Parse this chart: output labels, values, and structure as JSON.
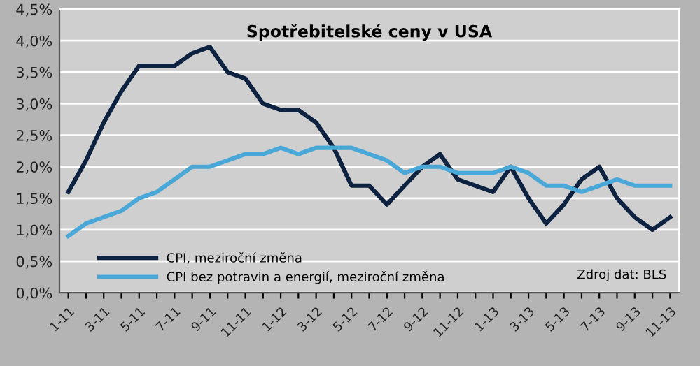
{
  "chart_data": {
    "type": "line",
    "title": "Spotřebitelské ceny v USA",
    "categories": [
      "1-11",
      null,
      "3-11",
      null,
      "5-11",
      null,
      "7-11",
      null,
      "9-11",
      null,
      "11-11",
      null,
      "1-12",
      null,
      "3-12",
      null,
      "5-12",
      null,
      "7-12",
      null,
      "9-12",
      null,
      "11-12",
      null,
      "1-13",
      null,
      "3-13",
      null,
      "5-13",
      null,
      "7-13",
      null,
      "9-13",
      null,
      "11-13"
    ],
    "series": [
      {
        "name": "CPI, meziroční změna",
        "color": "#0d2240",
        "values": [
          1.6,
          2.1,
          2.7,
          3.2,
          3.6,
          3.6,
          3.6,
          3.8,
          3.9,
          3.5,
          3.4,
          3.0,
          2.9,
          2.9,
          2.7,
          2.3,
          1.7,
          1.7,
          1.4,
          1.7,
          2.0,
          2.2,
          1.8,
          1.7,
          1.6,
          2.0,
          1.5,
          1.1,
          1.4,
          1.8,
          2.0,
          1.5,
          1.2,
          1.0,
          1.2
        ]
      },
      {
        "name": "CPI bez potravin a energií, meziroční změna",
        "color": "#4aa8d8",
        "values": [
          0.9,
          1.1,
          1.2,
          1.3,
          1.5,
          1.6,
          1.8,
          2.0,
          2.0,
          2.1,
          2.2,
          2.2,
          2.3,
          2.2,
          2.3,
          2.3,
          2.3,
          2.2,
          2.1,
          1.9,
          2.0,
          2.0,
          1.9,
          1.9,
          1.9,
          2.0,
          1.9,
          1.7,
          1.7,
          1.6,
          1.7,
          1.8,
          1.7,
          1.7,
          1.7
        ]
      }
    ],
    "ylim": [
      0,
      4.5
    ],
    "yticks": [
      {
        "value": 0,
        "label": "0,0%"
      },
      {
        "value": 0.5,
        "label": "0,5%"
      },
      {
        "value": 1,
        "label": "1,0%"
      },
      {
        "value": 1.5,
        "label": "1,5%"
      },
      {
        "value": 2,
        "label": "2,0%"
      },
      {
        "value": 2.5,
        "label": "2,5%"
      },
      {
        "value": 3,
        "label": "3,0%"
      },
      {
        "value": 3.5,
        "label": "3,5%"
      },
      {
        "value": 4,
        "label": "4,0%"
      },
      {
        "value": 4.5,
        "label": "4,5%"
      }
    ],
    "grid": "y",
    "legend": "bottom left",
    "marker": "none",
    "line_style": "solid",
    "annotations": [
      "Zdroj dat: BLS"
    ]
  }
}
